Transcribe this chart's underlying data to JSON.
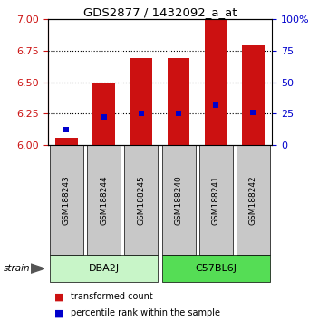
{
  "title": "GDS2877 / 1432092_a_at",
  "samples": [
    "GSM188243",
    "GSM188244",
    "GSM188245",
    "GSM188240",
    "GSM188241",
    "GSM188242"
  ],
  "red_bar_tops": [
    6.06,
    6.5,
    6.69,
    6.69,
    7.0,
    6.79
  ],
  "blue_positions": [
    6.12,
    6.22,
    6.255,
    6.252,
    6.32,
    6.258
  ],
  "bar_bottom": 6.0,
  "ylim_left": [
    6.0,
    7.0
  ],
  "ylim_right": [
    0,
    100
  ],
  "yticks_left": [
    6.0,
    6.25,
    6.5,
    6.75,
    7.0
  ],
  "yticks_right": [
    0,
    25,
    50,
    75,
    100
  ],
  "groups": [
    {
      "label": "DBA2J",
      "indices": [
        0,
        1,
        2
      ],
      "color": "#c8f5c8"
    },
    {
      "label": "C57BL6J",
      "indices": [
        3,
        4,
        5
      ],
      "color": "#55dd55"
    }
  ],
  "bar_color": "#cc1111",
  "blue_color": "#0000cc",
  "left_axis_color": "#cc1111",
  "right_axis_color": "#0000cc",
  "legend_red_label": "transformed count",
  "legend_blue_label": "percentile rank within the sample",
  "strain_label": "strain",
  "group_box_color": "#c8c8c8",
  "bar_width": 0.6
}
